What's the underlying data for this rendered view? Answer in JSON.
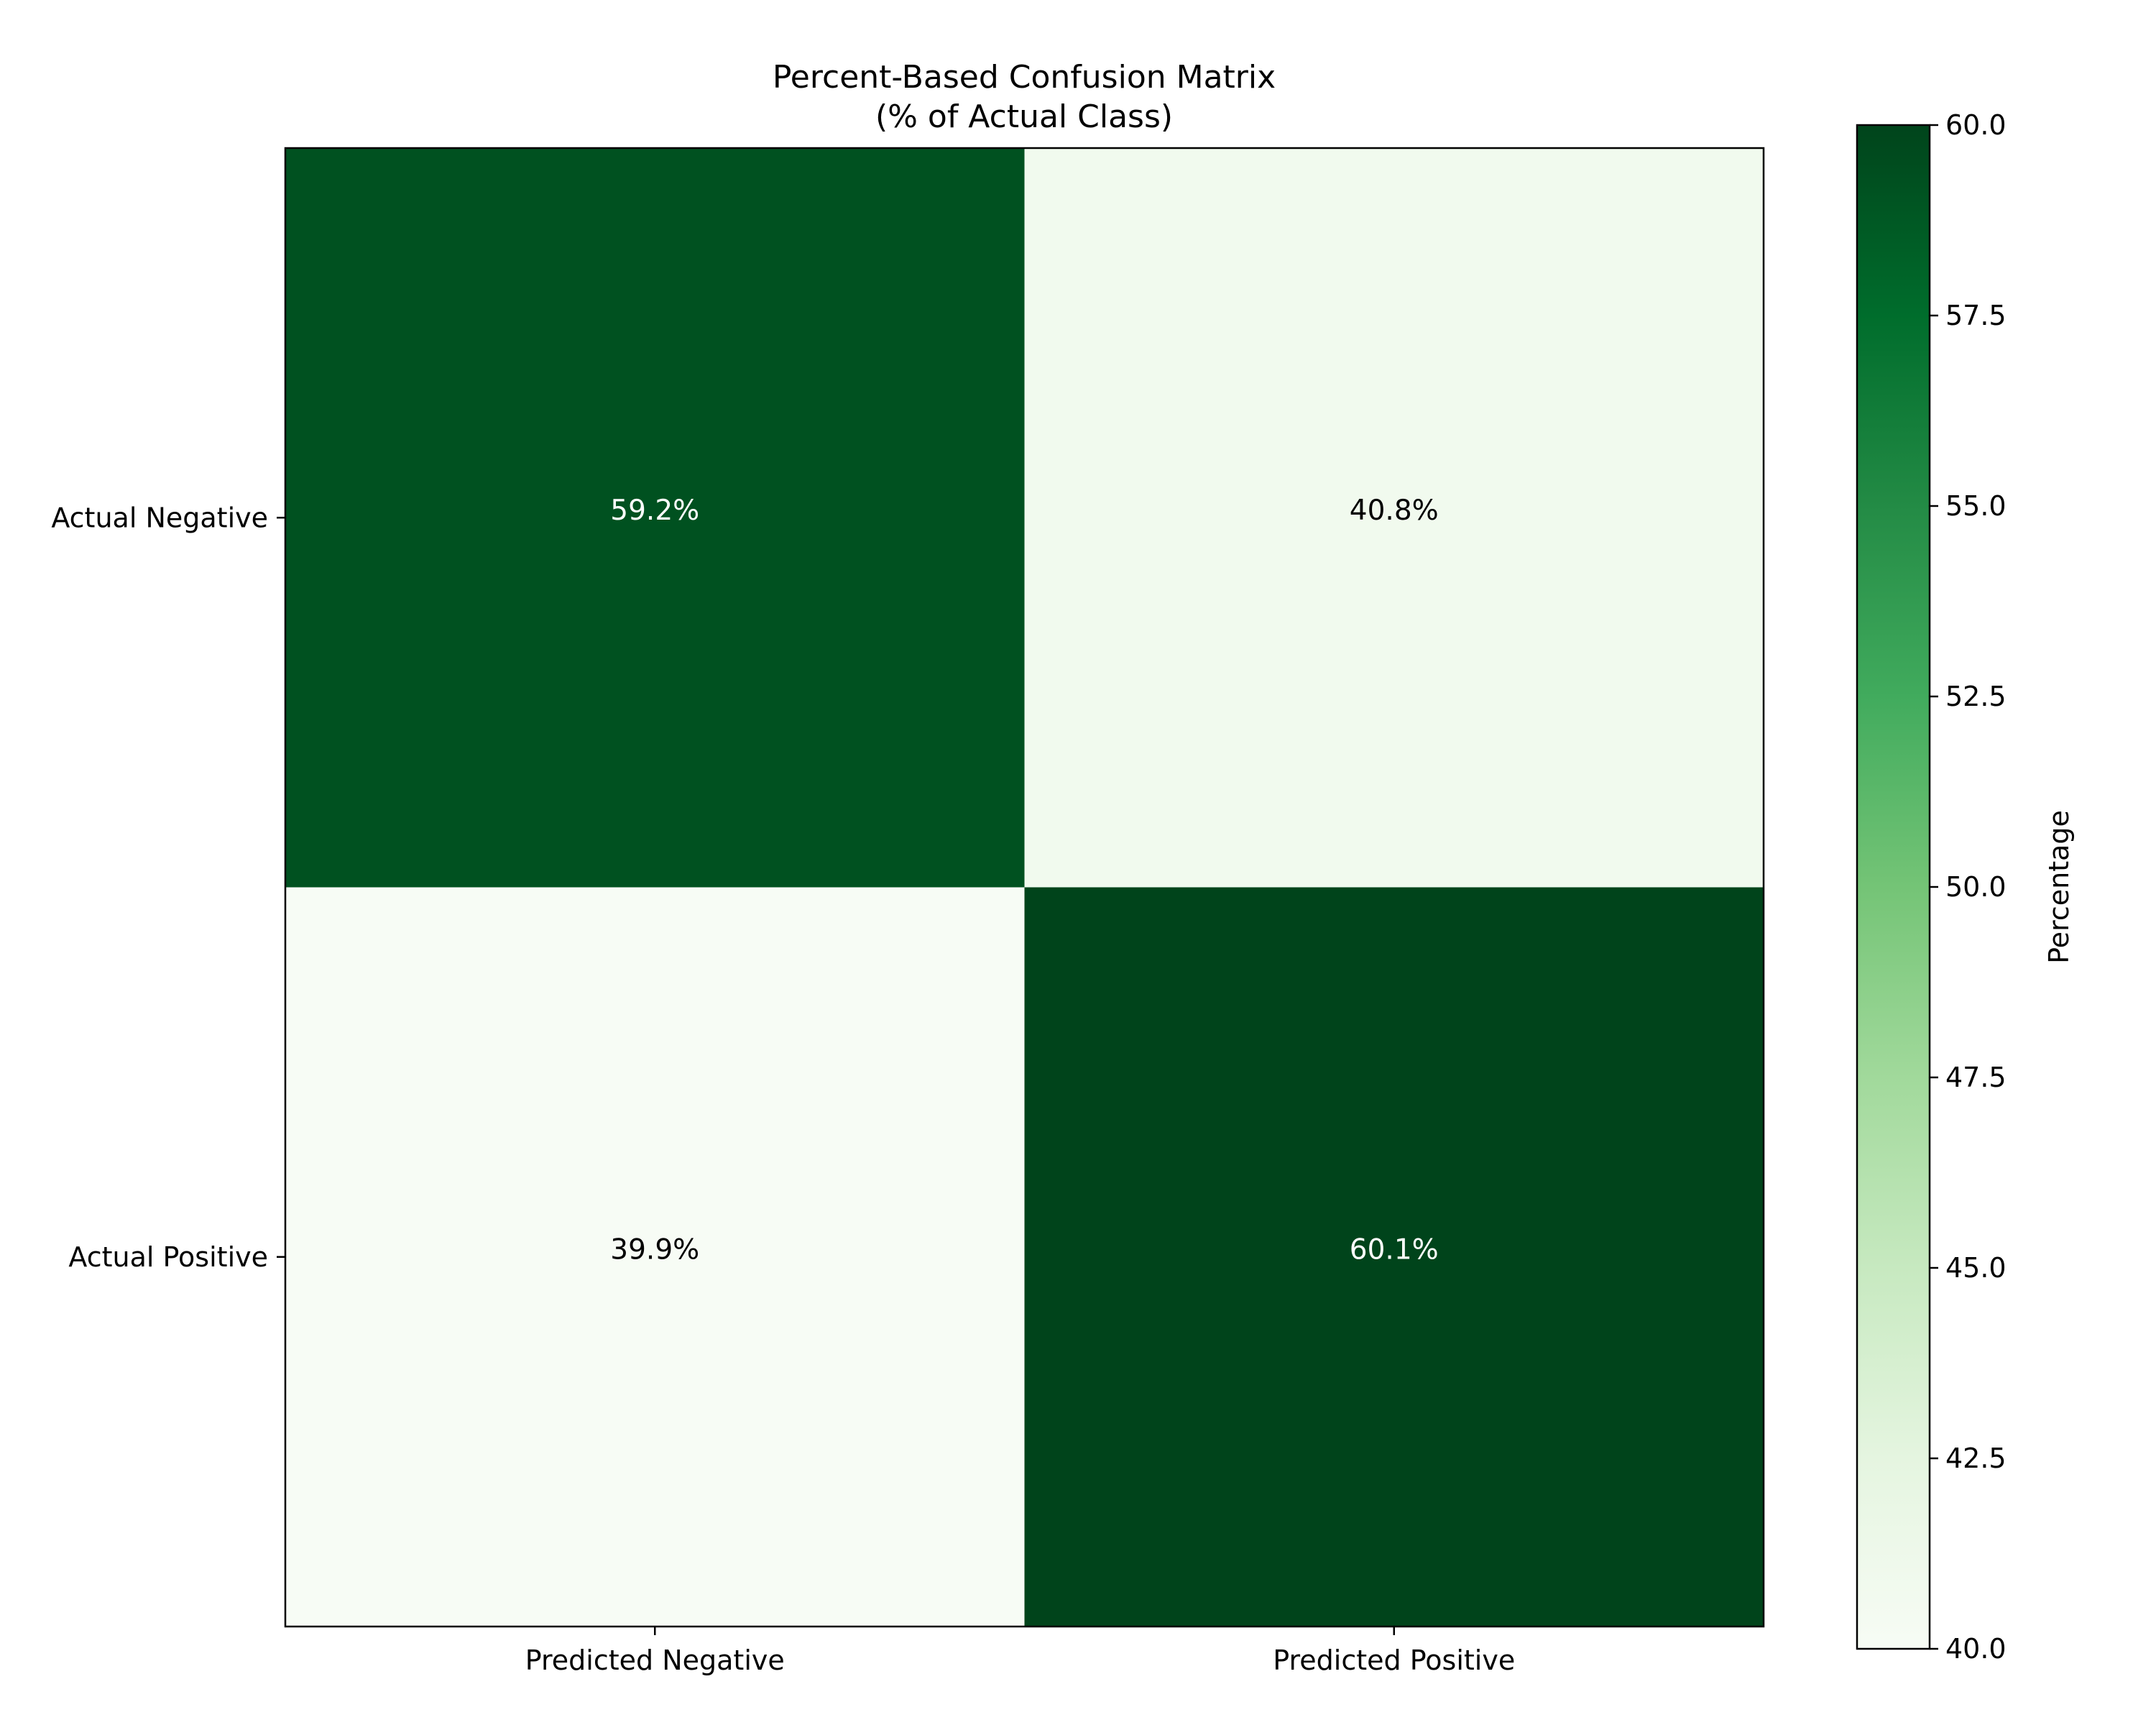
{
  "chart_data": {
    "type": "heatmap",
    "title_line1": "Percent-Based Confusion Matrix",
    "title_line2": "(% of Actual Class)",
    "row_labels": [
      "Actual Negative",
      "Actual Positive"
    ],
    "col_labels": [
      "Predicted Negative",
      "Predicted Positive"
    ],
    "values": [
      [
        59.2,
        40.8
      ],
      [
        39.9,
        60.1
      ]
    ],
    "cell_text": [
      [
        "59.2%",
        "40.8%"
      ],
      [
        "39.9%",
        "60.1%"
      ]
    ],
    "colorbar": {
      "label": "Percentage",
      "range": [
        40.0,
        60.0
      ],
      "ticks": [
        40.0,
        42.5,
        45.0,
        47.5,
        50.0,
        52.5,
        55.0,
        57.5,
        60.0
      ],
      "tick_labels": [
        "40.0",
        "42.5",
        "45.0",
        "47.5",
        "50.0",
        "52.5",
        "55.0",
        "57.5",
        "60.0"
      ],
      "colormap": "Greens",
      "colormap_stops": [
        "#f7fcf5",
        "#e5f5e0",
        "#c7e9c0",
        "#a1d99b",
        "#74c476",
        "#41ab5d",
        "#238b45",
        "#006d2c",
        "#00441b"
      ]
    },
    "grid": false
  }
}
